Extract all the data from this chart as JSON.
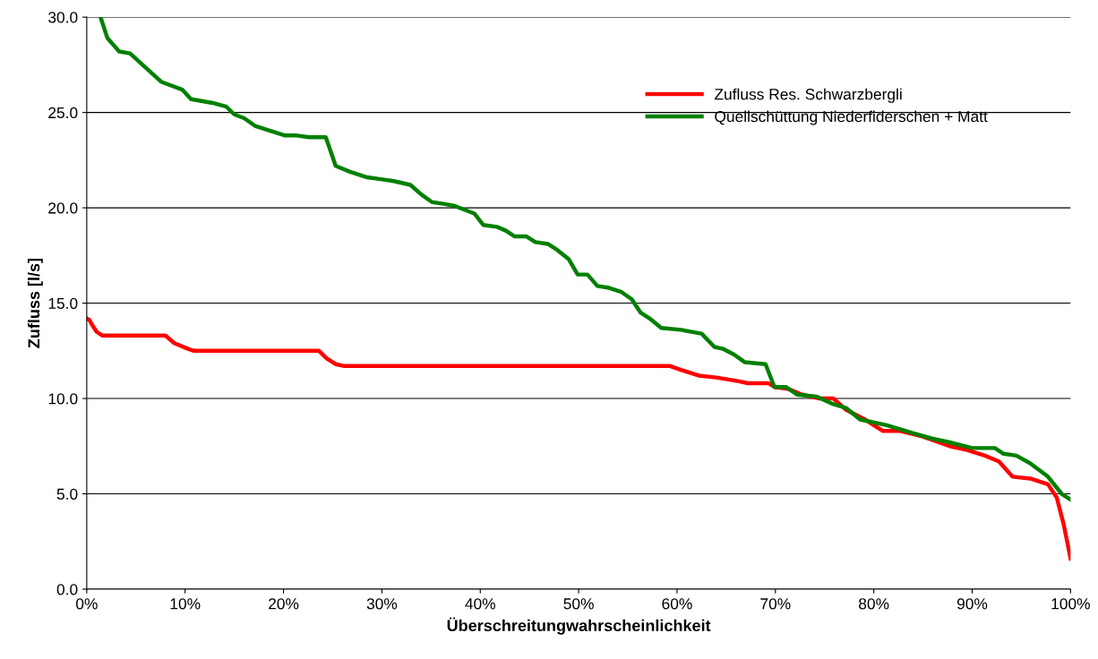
{
  "chart_data": {
    "type": "line",
    "xlabel": "Überschreitungwahrscheinlichkeit",
    "ylabel": "Zufluss [l/s]",
    "xlim": [
      0,
      100
    ],
    "ylim": [
      0,
      30
    ],
    "xticks": [
      {
        "value": 0,
        "label": "0%"
      },
      {
        "value": 10,
        "label": "10%"
      },
      {
        "value": 20,
        "label": "20%"
      },
      {
        "value": 30,
        "label": "30%"
      },
      {
        "value": 40,
        "label": "40%"
      },
      {
        "value": 50,
        "label": "50%"
      },
      {
        "value": 60,
        "label": "60%"
      },
      {
        "value": 70,
        "label": "70%"
      },
      {
        "value": 80,
        "label": "80%"
      },
      {
        "value": 90,
        "label": "90%"
      },
      {
        "value": 100,
        "label": "100%"
      }
    ],
    "yticks": [
      {
        "value": 0,
        "label": "0.0"
      },
      {
        "value": 5,
        "label": "5.0"
      },
      {
        "value": 10,
        "label": "10.0"
      },
      {
        "value": 15,
        "label": "15.0"
      },
      {
        "value": 20,
        "label": "20.0"
      },
      {
        "value": 25,
        "label": "25.0"
      },
      {
        "value": 30,
        "label": "30.0"
      }
    ],
    "grid": "y",
    "legend": "top right",
    "marker": "none",
    "line_style": "solid",
    "series": [
      {
        "name": "Zufluss Res. Schwarzbergli",
        "color": "#ff0000",
        "x": [
          0,
          0.3,
          0.5,
          1,
          1.6,
          8,
          8.9,
          10.3,
          10.9,
          12,
          23.6,
          24.4,
          25.3,
          26.2,
          27.6,
          59.3,
          60.4,
          62.2,
          64,
          66.3,
          67.2,
          69.3,
          69.9,
          71.3,
          72.7,
          74.5,
          75.9,
          77.2,
          79.1,
          80,
          80.9,
          82.7,
          85,
          87.7,
          89.5,
          91.3,
          92.7,
          94.1,
          95.9,
          97.7,
          98.6,
          99.3,
          100
        ],
        "values": [
          14.2,
          14.1,
          13.9,
          13.5,
          13.3,
          13.3,
          12.9,
          12.6,
          12.5,
          12.5,
          12.5,
          12.1,
          11.8,
          11.7,
          11.7,
          11.7,
          11.5,
          11.2,
          11.1,
          10.9,
          10.8,
          10.8,
          10.6,
          10.5,
          10.2,
          10.0,
          10.0,
          9.4,
          8.9,
          8.6,
          8.3,
          8.3,
          8.0,
          7.5,
          7.3,
          7.0,
          6.7,
          5.9,
          5.8,
          5.5,
          4.8,
          3.4,
          1.6
        ]
      },
      {
        "name": "Quellschüttung Niederfiderschen + Matt",
        "color": "#008000",
        "x": [
          1.4,
          2.1,
          3.3,
          4.4,
          7.6,
          9.7,
          10.6,
          12.8,
          14.2,
          15,
          16,
          17.1,
          18.3,
          20.1,
          21.2,
          22.6,
          24.3,
          25.3,
          26.7,
          28.5,
          29.9,
          31.2,
          32.9,
          34,
          35.1,
          36.4,
          37.4,
          39.4,
          40.3,
          41.7,
          42.6,
          43.5,
          44.7,
          45.6,
          46.9,
          47.8,
          49,
          49.9,
          50.9,
          51.9,
          53.1,
          54.3,
          55.4,
          56.3,
          57.2,
          58.4,
          60.4,
          62.5,
          63.8,
          64.7,
          65.8,
          66.9,
          69,
          69.9,
          71.1,
          72.2,
          74.2,
          75.9,
          77.2,
          78.6,
          81.3,
          83.2,
          85.9,
          87.7,
          90,
          92.3,
          93.2,
          94.5,
          95.9,
          97.7,
          99.1,
          100
        ],
        "values": [
          30.0,
          28.9,
          28.2,
          28.1,
          26.6,
          26.2,
          25.7,
          25.5,
          25.3,
          24.9,
          24.7,
          24.3,
          24.1,
          23.8,
          23.8,
          23.7,
          23.7,
          22.2,
          21.9,
          21.6,
          21.5,
          21.4,
          21.2,
          20.7,
          20.3,
          20.2,
          20.1,
          19.7,
          19.1,
          19.0,
          18.8,
          18.5,
          18.5,
          18.2,
          18.1,
          17.8,
          17.3,
          16.5,
          16.5,
          15.9,
          15.8,
          15.6,
          15.2,
          14.5,
          14.2,
          13.7,
          13.6,
          13.4,
          12.7,
          12.6,
          12.3,
          11.9,
          11.8,
          10.6,
          10.6,
          10.2,
          10.1,
          9.7,
          9.5,
          8.9,
          8.6,
          8.3,
          7.9,
          7.7,
          7.4,
          7.4,
          7.1,
          7.0,
          6.6,
          5.9,
          5.0,
          4.7
        ]
      }
    ]
  }
}
